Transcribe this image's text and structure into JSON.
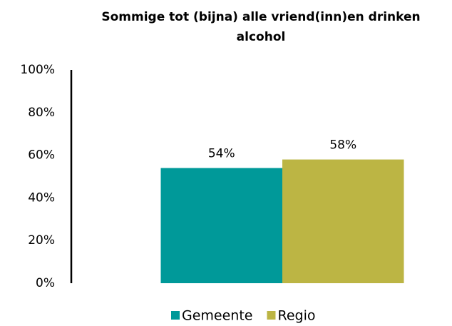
{
  "chart_data": {
    "type": "bar",
    "title": "Sommige tot (bijna) alle vriend(inn)en drinken alcohol",
    "categories": [
      null
    ],
    "series": [
      {
        "name": "Gemeente",
        "color": "#009999",
        "values": [
          54
        ],
        "value_labels": [
          "54%"
        ]
      },
      {
        "name": "Regio",
        "color": "#bcb544",
        "values": [
          58
        ],
        "value_labels": [
          "58%"
        ]
      }
    ],
    "ylim": [
      0,
      100
    ],
    "yticks": [
      {
        "value": 0,
        "label": "0%"
      },
      {
        "value": 20,
        "label": "20%"
      },
      {
        "value": 40,
        "label": "40%"
      },
      {
        "value": 60,
        "label": "60%"
      },
      {
        "value": 80,
        "label": "80%"
      },
      {
        "value": 100,
        "label": "100%"
      }
    ],
    "grid": false,
    "legend": "bottom"
  }
}
